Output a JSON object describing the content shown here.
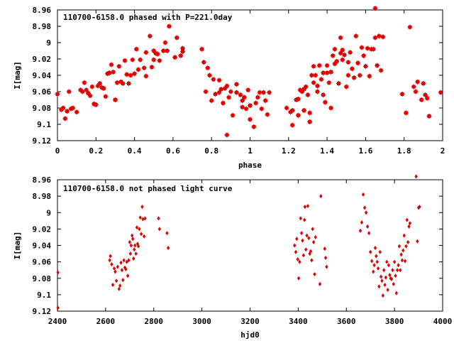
{
  "chart_data": [
    {
      "type": "scatter",
      "title": "110700-6158.0 phased with P=221.0day",
      "xlabel": "phase",
      "ylabel": "I[mag]",
      "xlim": [
        0,
        2
      ],
      "ylim": [
        9.12,
        8.96
      ],
      "y_inverted": true,
      "grid": false,
      "marker": "filled-circle-cross",
      "color": "#e00000",
      "x_ticks": [
        "0",
        "0.2",
        "0.4",
        "0.6",
        "0.8",
        "1",
        "1.2",
        "1.4",
        "1.6",
        "1.8",
        "2"
      ],
      "y_ticks": [
        "8.96",
        "8.98",
        "9",
        "9.02",
        "9.04",
        "9.06",
        "9.08",
        "9.1",
        "9.12"
      ],
      "points": [
        [
          0.0,
          9.063
        ],
        [
          0.02,
          9.082
        ],
        [
          0.03,
          9.08
        ],
        [
          0.04,
          9.093
        ],
        [
          0.05,
          9.084
        ],
        [
          0.06,
          9.06
        ],
        [
          0.07,
          9.081
        ],
        [
          0.08,
          9.08
        ],
        [
          0.1,
          9.085
        ],
        [
          0.12,
          9.058
        ],
        [
          0.13,
          9.06
        ],
        [
          0.14,
          9.049
        ],
        [
          0.15,
          9.058
        ],
        [
          0.16,
          9.062
        ],
        [
          0.17,
          9.065
        ],
        [
          0.18,
          9.054
        ],
        [
          0.19,
          9.075
        ],
        [
          0.2,
          9.076
        ],
        [
          0.21,
          9.053
        ],
        [
          0.22,
          9.05
        ],
        [
          0.23,
          9.055
        ],
        [
          0.24,
          9.056
        ],
        [
          0.25,
          9.066
        ],
        [
          0.26,
          9.038
        ],
        [
          0.27,
          9.037
        ],
        [
          0.28,
          9.027
        ],
        [
          0.29,
          9.036
        ],
        [
          0.3,
          9.07
        ],
        [
          0.31,
          9.049
        ],
        [
          0.32,
          9.029
        ],
        [
          0.33,
          9.048
        ],
        [
          0.34,
          9.05
        ],
        [
          0.35,
          9.022
        ],
        [
          0.36,
          9.039
        ],
        [
          0.37,
          9.05
        ],
        [
          0.38,
          9.04
        ],
        [
          0.39,
          9.021
        ],
        [
          0.4,
          9.038
        ],
        [
          0.41,
          9.008
        ],
        [
          0.42,
          9.033
        ],
        [
          0.43,
          9.021
        ],
        [
          0.45,
          9.031
        ],
        [
          0.46,
          9.012
        ],
        [
          0.46,
          9.041
        ],
        [
          0.48,
          8.992
        ],
        [
          0.49,
          9.03
        ],
        [
          0.5,
          9.021
        ],
        [
          0.5,
          9.01
        ],
        [
          0.51,
          9.013
        ],
        [
          0.52,
          9.014
        ],
        [
          0.53,
          9.022
        ],
        [
          0.55,
          9.01
        ],
        [
          0.56,
          9.0
        ],
        [
          0.57,
          9.01
        ],
        [
          0.58,
          8.98
        ],
        [
          0.61,
          9.018
        ],
        [
          0.62,
          8.994
        ],
        [
          0.64,
          9.016
        ],
        [
          0.65,
          9.007
        ],
        [
          0.65,
          9.011
        ],
        [
          0.75,
          9.008
        ],
        [
          0.76,
          9.024
        ],
        [
          0.77,
          9.06
        ],
        [
          0.78,
          9.031
        ],
        [
          0.79,
          9.04
        ],
        [
          0.8,
          9.071
        ],
        [
          0.81,
          9.045
        ],
        [
          0.82,
          9.063
        ],
        [
          0.84,
          9.061
        ],
        [
          0.84,
          9.046
        ],
        [
          0.85,
          9.057
        ],
        [
          0.86,
          9.074
        ],
        [
          0.87,
          9.056
        ],
        [
          0.88,
          9.113
        ],
        [
          0.88,
          9.053
        ],
        [
          0.89,
          9.067
        ],
        [
          0.9,
          9.06
        ],
        [
          0.91,
          9.089
        ],
        [
          0.93,
          9.061
        ],
        [
          0.93,
          9.051
        ],
        [
          0.95,
          9.064
        ],
        [
          0.96,
          9.071
        ],
        [
          0.96,
          9.079
        ],
        [
          0.97,
          9.067
        ],
        [
          0.98,
          9.081
        ],
        [
          0.99,
          9.058
        ],
        [
          1.0,
          9.077
        ],
        [
          1.0,
          9.094
        ],
        [
          1.02,
          9.103
        ],
        [
          1.03,
          9.074
        ],
        [
          1.04,
          9.067
        ],
        [
          1.05,
          9.061
        ],
        [
          1.06,
          9.081
        ],
        [
          1.07,
          9.061
        ],
        [
          1.08,
          9.071
        ],
        [
          1.09,
          9.088
        ],
        [
          1.1,
          9.061
        ],
        [
          1.19,
          9.08
        ],
        [
          1.21,
          9.085
        ],
        [
          1.22,
          9.101
        ],
        [
          1.22,
          9.083
        ],
        [
          1.24,
          9.07
        ],
        [
          1.25,
          9.089
        ],
        [
          1.25,
          9.069
        ],
        [
          1.26,
          9.058
        ],
        [
          1.27,
          9.06
        ],
        [
          1.28,
          9.057
        ],
        [
          1.28,
          9.083
        ],
        [
          1.29,
          9.054
        ],
        [
          1.3,
          9.064
        ],
        [
          1.31,
          9.097
        ],
        [
          1.31,
          9.086
        ],
        [
          1.32,
          9.04
        ],
        [
          1.33,
          9.049
        ],
        [
          1.33,
          9.029
        ],
        [
          1.34,
          9.04
        ],
        [
          1.35,
          9.06
        ],
        [
          1.35,
          9.053
        ],
        [
          1.36,
          9.028
        ],
        [
          1.37,
          9.045
        ],
        [
          1.38,
          9.037
        ],
        [
          1.38,
          9.064
        ],
        [
          1.39,
          9.073
        ],
        [
          1.4,
          9.028
        ],
        [
          1.4,
          9.037
        ],
        [
          1.41,
          9.049
        ],
        [
          1.42,
          9.08
        ],
        [
          1.42,
          9.036
        ],
        [
          1.43,
          9.016
        ],
        [
          1.44,
          9.026
        ],
        [
          1.44,
          9.008
        ],
        [
          1.45,
          9.023
        ],
        [
          1.46,
          9.05
        ],
        [
          1.47,
          9.013
        ],
        [
          1.47,
          8.994
        ],
        [
          1.48,
          9.009
        ],
        [
          1.48,
          9.021
        ],
        [
          1.49,
          9.015
        ],
        [
          1.5,
          9.054
        ],
        [
          1.51,
          9.04
        ],
        [
          1.51,
          9.024
        ],
        [
          1.52,
          9.012
        ],
        [
          1.53,
          9.032
        ],
        [
          1.54,
          9.043
        ],
        [
          1.55,
          8.992
        ],
        [
          1.56,
          9.025
        ],
        [
          1.57,
          9.04
        ],
        [
          1.58,
          9.006
        ],
        [
          1.59,
          9.016
        ],
        [
          1.6,
          9.029
        ],
        [
          1.61,
          9.007
        ],
        [
          1.62,
          9.041
        ],
        [
          1.63,
          9.008
        ],
        [
          1.64,
          9.008
        ],
        [
          1.65,
          8.958
        ],
        [
          1.65,
          8.994
        ],
        [
          1.66,
          9.028
        ],
        [
          1.67,
          8.992
        ],
        [
          1.68,
          9.034
        ],
        [
          1.69,
          8.993
        ],
        [
          1.79,
          9.063
        ],
        [
          1.81,
          9.086
        ],
        [
          1.83,
          8.981
        ],
        [
          1.85,
          9.054
        ],
        [
          1.86,
          9.06
        ],
        [
          1.87,
          9.048
        ],
        [
          1.89,
          9.07
        ],
        [
          1.9,
          9.05
        ],
        [
          1.91,
          9.064
        ],
        [
          1.92,
          9.068
        ],
        [
          1.93,
          9.09
        ],
        [
          1.99,
          9.061
        ]
      ]
    },
    {
      "type": "scatter",
      "title": "110700-6158.0 not phased light curve",
      "xlabel": "hjd0",
      "ylabel": "I[mag]",
      "xlim": [
        2400,
        4000
      ],
      "ylim": [
        9.12,
        8.96
      ],
      "y_inverted": true,
      "grid": false,
      "marker": "diamond",
      "color": "#e00000",
      "x_ticks": [
        "2400",
        "2600",
        "2800",
        "3000",
        "3200",
        "3400",
        "3600",
        "3800",
        "4000"
      ],
      "y_ticks": [
        "8.96",
        "8.98",
        "9",
        "9.02",
        "9.04",
        "9.06",
        "9.08",
        "9.1",
        "9.12"
      ],
      "points": [
        [
          2402,
          9.073
        ],
        [
          2402,
          9.116
        ],
        [
          2617,
          9.058
        ],
        [
          2620,
          9.053
        ],
        [
          2625,
          9.063
        ],
        [
          2630,
          9.088
        ],
        [
          2636,
          9.068
        ],
        [
          2640,
          9.072
        ],
        [
          2645,
          9.083
        ],
        [
          2650,
          9.066
        ],
        [
          2656,
          9.093
        ],
        [
          2660,
          9.089
        ],
        [
          2664,
          9.061
        ],
        [
          2668,
          9.07
        ],
        [
          2672,
          9.082
        ],
        [
          2676,
          9.058
        ],
        [
          2680,
          9.067
        ],
        [
          2684,
          9.069
        ],
        [
          2688,
          9.06
        ],
        [
          2692,
          9.077
        ],
        [
          2696,
          9.058
        ],
        [
          2700,
          9.036
        ],
        [
          2703,
          9.05
        ],
        [
          2706,
          9.04
        ],
        [
          2710,
          9.028
        ],
        [
          2713,
          9.032
        ],
        [
          2716,
          9.056
        ],
        [
          2719,
          9.045
        ],
        [
          2722,
          9.04
        ],
        [
          2726,
          9.05
        ],
        [
          2730,
          9.018
        ],
        [
          2733,
          9.038
        ],
        [
          2736,
          9.041
        ],
        [
          2740,
          9.02
        ],
        [
          2744,
          9.006
        ],
        [
          2748,
          9.026
        ],
        [
          2752,
          8.993
        ],
        [
          2755,
          9.008
        ],
        [
          2760,
          9.029
        ],
        [
          2764,
          9.007
        ],
        [
          2820,
          9.007
        ],
        [
          2824,
          9.02
        ],
        [
          2855,
          9.025
        ],
        [
          2860,
          9.043
        ],
        [
          3385,
          9.04
        ],
        [
          3390,
          9.048
        ],
        [
          3394,
          9.032
        ],
        [
          3398,
          9.057
        ],
        [
          3402,
          9.08
        ],
        [
          3406,
          9.06
        ],
        [
          3410,
          9.007
        ],
        [
          3414,
          9.025
        ],
        [
          3418,
          9.034
        ],
        [
          3422,
          9.052
        ],
        [
          3426,
          9.009
        ],
        [
          3428,
          8.993
        ],
        [
          3432,
          9.045
        ],
        [
          3436,
          9.028
        ],
        [
          3440,
          8.992
        ],
        [
          3444,
          9.031
        ],
        [
          3448,
          9.05
        ],
        [
          3452,
          9.047
        ],
        [
          3456,
          9.058
        ],
        [
          3460,
          9.02
        ],
        [
          3464,
          9.036
        ],
        [
          3468,
          9.075
        ],
        [
          3472,
          9.03
        ],
        [
          3490,
          9.087
        ],
        [
          3494,
          8.98
        ],
        [
          3510,
          9.044
        ],
        [
          3514,
          9.055
        ],
        [
          3518,
          9.066
        ],
        [
          3658,
          9.022
        ],
        [
          3664,
          9.012
        ],
        [
          3670,
          8.978
        ],
        [
          3676,
          8.994
        ],
        [
          3682,
          9.0
        ],
        [
          3688,
          9.017
        ],
        [
          3694,
          9.025
        ],
        [
          3700,
          9.048
        ],
        [
          3706,
          9.059
        ],
        [
          3712,
          9.072
        ],
        [
          3716,
          9.064
        ],
        [
          3720,
          9.043
        ],
        [
          3724,
          9.053
        ],
        [
          3728,
          9.06
        ],
        [
          3732,
          9.068
        ],
        [
          3736,
          9.09
        ],
        [
          3740,
          9.048
        ],
        [
          3744,
          9.078
        ],
        [
          3748,
          9.083
        ],
        [
          3752,
          9.101
        ],
        [
          3756,
          9.07
        ],
        [
          3760,
          9.088
        ],
        [
          3764,
          9.079
        ],
        [
          3768,
          9.06
        ],
        [
          3772,
          9.094
        ],
        [
          3776,
          9.064
        ],
        [
          3780,
          9.076
        ],
        [
          3784,
          9.08
        ],
        [
          3788,
          9.081
        ],
        [
          3792,
          9.07
        ],
        [
          3796,
          9.087
        ],
        [
          3800,
          9.06
        ],
        [
          3804,
          9.077
        ],
        [
          3808,
          9.098
        ],
        [
          3812,
          9.07
        ],
        [
          3816,
          9.064
        ],
        [
          3820,
          9.041
        ],
        [
          3824,
          9.07
        ],
        [
          3828,
          9.051
        ],
        [
          3832,
          9.058
        ],
        [
          3836,
          9.046
        ],
        [
          3840,
          9.028
        ],
        [
          3844,
          9.059
        ],
        [
          3848,
          9.041
        ],
        [
          3852,
          9.009
        ],
        [
          3856,
          9.036
        ],
        [
          3860,
          9.017
        ],
        [
          3864,
          9.013
        ],
        [
          3890,
          8.956
        ],
        [
          3895,
          9.035
        ],
        [
          3900,
          8.994
        ],
        [
          3904,
          8.993
        ]
      ]
    }
  ]
}
